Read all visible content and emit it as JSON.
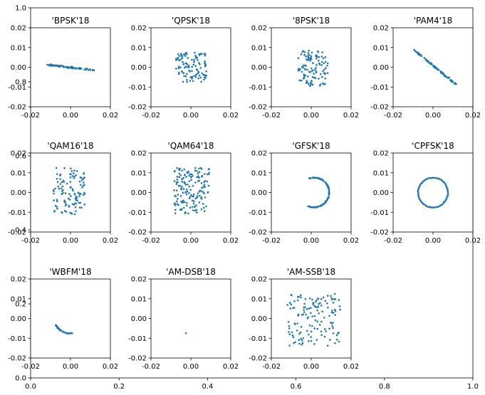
{
  "chart_data": {
    "type": "scatter",
    "marker_color": "#1f77b4",
    "background_axes": {
      "xlim": [
        0,
        1
      ],
      "ylim": [
        0,
        1
      ],
      "xticks": [
        "0.0",
        "0.2",
        "0.4",
        "0.6",
        "0.8",
        "1.0"
      ],
      "yticks": [
        "0.0",
        "0.2",
        "0.4",
        "0.6",
        "0.8",
        "1.0"
      ]
    },
    "subplot_axes": {
      "xlim": [
        -0.02,
        0.02
      ],
      "ylim": [
        -0.02,
        0.02
      ],
      "xticks": [
        "-0.02",
        "0.00",
        "0.02"
      ],
      "yticks": [
        "-0.02",
        "-0.01",
        "0.00",
        "0.01",
        "0.02"
      ]
    },
    "panels": [
      {
        "title": "'BPSK'18",
        "shape": "line",
        "points": [
          [
            -0.0115,
            0.0012
          ],
          [
            0.012,
            -0.0015
          ]
        ],
        "spread": 0.0006,
        "count": 70
      },
      {
        "title": "'QPSK'18",
        "shape": "random",
        "bounds": [
          -0.0075,
          0.008,
          -0.0075,
          0.008
        ],
        "count": 110
      },
      {
        "title": "'8PSK'18",
        "shape": "random",
        "bounds": [
          -0.0065,
          0.0085,
          -0.0095,
          0.0085
        ],
        "count": 110
      },
      {
        "title": "'PAM4'18",
        "shape": "line",
        "points": [
          [
            -0.0095,
            0.0088
          ],
          [
            0.012,
            -0.0092
          ]
        ],
        "spread": 0.0005,
        "count": 90
      },
      {
        "title": "'QAM16'18",
        "shape": "random",
        "bounds": [
          -0.0085,
          0.0075,
          -0.0115,
          0.0125
        ],
        "count": 110
      },
      {
        "title": "'QAM64'18",
        "shape": "random",
        "bounds": [
          -0.0085,
          0.0095,
          -0.011,
          0.0125
        ],
        "count": 160
      },
      {
        "title": "'GFSK'18",
        "shape": "arc",
        "center": [
          0.0015,
          0.0
        ],
        "radius": 0.0075,
        "start_deg": -115,
        "end_deg": 110,
        "count": 100
      },
      {
        "title": "'CPFSK'18",
        "shape": "ring",
        "center": [
          0.0,
          0.0
        ],
        "radius": 0.0075,
        "count": 70
      },
      {
        "title": "'WBFM'18",
        "shape": "arc",
        "center": [
          -0.0005,
          0.0
        ],
        "radius": 0.0075,
        "start_deg": -155,
        "end_deg": -80,
        "count": 45
      },
      {
        "title": "'AM-DSB'18",
        "shape": "point",
        "center": [
          -0.0025,
          -0.0075
        ],
        "count": 1
      },
      {
        "title": "'AM-SSB'18",
        "shape": "random",
        "bounds": [
          -0.012,
          0.0145,
          -0.014,
          0.0125
        ],
        "count": 140
      }
    ]
  }
}
